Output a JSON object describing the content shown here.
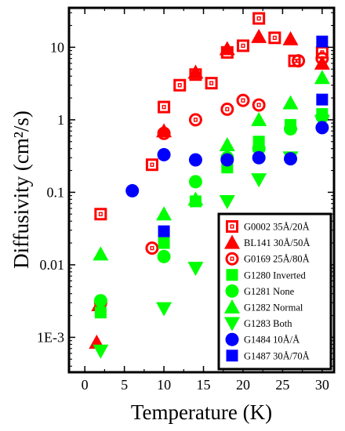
{
  "chart_data": {
    "type": "scatter",
    "xlabel": "Temperature (K)",
    "ylabel": "Diffusivity (cm²/s)",
    "xlim": [
      -2,
      31.5
    ],
    "ylim": [
      0.00033,
      35
    ],
    "yscale": "log",
    "xticks": [
      "0",
      "5",
      "10",
      "15",
      "20",
      "25",
      "30"
    ],
    "yticks": [
      {
        "value": 0.001,
        "label": "1E-3"
      },
      {
        "value": 0.01,
        "label": "0.01"
      },
      {
        "value": 0.1,
        "label": "0.1"
      },
      {
        "value": 1,
        "label": "1"
      },
      {
        "value": 10,
        "label": "10"
      }
    ],
    "legend_position": "lower-right",
    "series": [
      {
        "name": "G0002 35Å/20Å",
        "marker": "square-open",
        "color": "#ff0000",
        "points": [
          [
            2,
            0.05
          ],
          [
            8.5,
            0.24
          ],
          [
            10,
            1.5
          ],
          [
            12,
            3.0
          ],
          [
            14,
            4.2
          ],
          [
            16,
            3.2
          ],
          [
            18,
            8.5
          ],
          [
            20,
            10.5
          ],
          [
            22,
            25
          ],
          [
            24,
            13.5
          ],
          [
            26.5,
            6.5
          ],
          [
            30,
            8.5
          ]
        ]
      },
      {
        "name": "BL141 30Å/50Å",
        "marker": "triangle-up",
        "color": "#ff0000",
        "points": [
          [
            1.5,
            0.00085
          ],
          [
            1.8,
            0.0028
          ],
          [
            10,
            0.7
          ],
          [
            14,
            4.5
          ],
          [
            18,
            9.5
          ],
          [
            22,
            14
          ],
          [
            26,
            13
          ],
          [
            30,
            6
          ]
        ]
      },
      {
        "name": "G0169 25Å/80Å",
        "marker": "circle-open",
        "color": "#ff0000",
        "points": [
          [
            2,
            0.003
          ],
          [
            8.5,
            0.017
          ],
          [
            10,
            0.65
          ],
          [
            14,
            1.0
          ],
          [
            18,
            1.4
          ],
          [
            20,
            1.85
          ],
          [
            22,
            1.6
          ],
          [
            27,
            6.5
          ],
          [
            30,
            7
          ]
        ]
      },
      {
        "name": "G1280 Inverted",
        "marker": "square",
        "color": "#00ff00",
        "points": [
          [
            2,
            0.0022
          ],
          [
            10,
            0.02
          ],
          [
            14,
            0.075
          ],
          [
            18,
            0.22
          ],
          [
            22,
            0.5
          ],
          [
            26,
            0.85
          ],
          [
            30,
            1.2
          ]
        ]
      },
      {
        "name": "G1281 None",
        "marker": "circle",
        "color": "#00ff00",
        "points": [
          [
            2,
            0.0032
          ],
          [
            10,
            0.013
          ],
          [
            14,
            0.14
          ],
          [
            18,
            0.3
          ],
          [
            22,
            0.4
          ],
          [
            26,
            0.75
          ],
          [
            30,
            1.1
          ]
        ]
      },
      {
        "name": "G1282 Normal",
        "marker": "triangle-up",
        "color": "#00ff00",
        "points": [
          [
            2,
            0.014
          ],
          [
            10,
            0.05
          ],
          [
            14,
            0.08
          ],
          [
            18,
            0.45
          ],
          [
            22,
            1.0
          ],
          [
            26,
            1.7
          ],
          [
            30,
            3.8
          ]
        ]
      },
      {
        "name": "G1283 Both",
        "marker": "triangle-down",
        "color": "#00ff00",
        "points": [
          [
            2,
            0.00065
          ],
          [
            10,
            0.0025
          ],
          [
            14,
            0.009
          ],
          [
            18,
            0.075
          ],
          [
            22,
            0.15
          ],
          [
            26,
            0.3
          ],
          [
            30,
            0.95
          ]
        ]
      },
      {
        "name": "G1484 10Å/Å",
        "marker": "circle",
        "color": "#0000ff",
        "points": [
          [
            6,
            0.105
          ],
          [
            10,
            0.33
          ],
          [
            14,
            0.28
          ],
          [
            18,
            0.28
          ],
          [
            22,
            0.3
          ],
          [
            26,
            0.29
          ],
          [
            30,
            0.78
          ]
        ]
      },
      {
        "name": "G1487 30Å/70Å",
        "marker": "square",
        "color": "#0000ff",
        "points": [
          [
            10,
            0.029
          ],
          [
            30,
            1.9
          ],
          [
            30,
            12
          ]
        ]
      }
    ]
  }
}
